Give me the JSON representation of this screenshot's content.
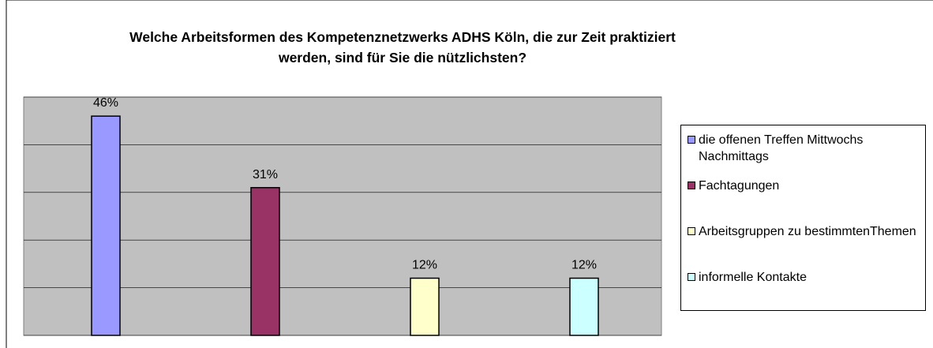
{
  "chart_data": {
    "type": "bar",
    "title": "Welche Arbeitsformen des Kompetenznetzwerks ADHS Köln, die zur Zeit praktiziert werden, sind für Sie die nützlichsten?",
    "categories": [
      "die offenen Treffen Mittwochs Nachmittags",
      "Fachtagungen",
      "Arbeitsgruppen zu bestimmtenThemen",
      "informelle Kontakte"
    ],
    "values": [
      46,
      31,
      12,
      12
    ],
    "value_labels": [
      "46%",
      "31%",
      "12%",
      "12%"
    ],
    "colors": [
      "#9999ff",
      "#993366",
      "#ffffcc",
      "#ccffff"
    ],
    "ylim": [
      0,
      50
    ],
    "yticks": [
      0,
      10,
      20,
      30,
      40,
      50
    ],
    "grid": true,
    "legend": "right"
  }
}
